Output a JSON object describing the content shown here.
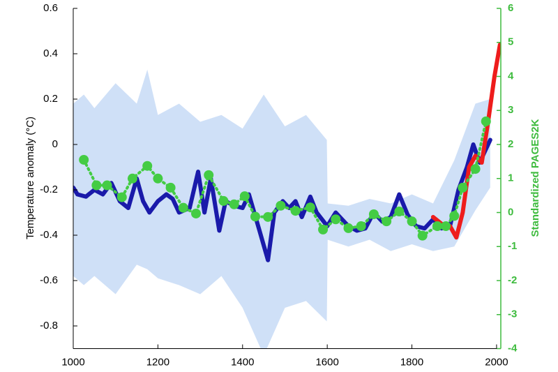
{
  "chart_data": {
    "type": "line",
    "ylabel": "Temperature anomaly (°C)",
    "y2label": "Standardized PAGES2K",
    "xlim": [
      1000,
      2010
    ],
    "xticks": [
      1000,
      1200,
      1400,
      1600,
      1800,
      2000
    ],
    "ylim": [
      -0.9,
      0.6
    ],
    "yticks": [
      -0.8,
      -0.6,
      -0.4,
      -0.2,
      0,
      0.2,
      0.4,
      0.6
    ],
    "y2lim": [
      -4,
      6
    ],
    "y2ticks": [
      -4,
      -3,
      -2,
      -1,
      0,
      1,
      2,
      3,
      4,
      5,
      6
    ],
    "y2color": "#3dbb3d",
    "band": {
      "color": "#cfe0f7",
      "x": [
        1000,
        1025,
        1050,
        1100,
        1150,
        1175,
        1200,
        1250,
        1300,
        1350,
        1400,
        1450,
        1500,
        1550,
        1599,
        1601,
        1650,
        1700,
        1750,
        1800,
        1850,
        1900,
        1950,
        1985
      ],
      "upper": [
        0.18,
        0.22,
        0.16,
        0.27,
        0.18,
        0.33,
        0.13,
        0.18,
        0.1,
        0.13,
        0.07,
        0.22,
        0.08,
        0.13,
        0.02,
        -0.26,
        -0.27,
        -0.24,
        -0.26,
        -0.22,
        -0.26,
        -0.07,
        0.18,
        0.2
      ],
      "lower": [
        -0.58,
        -0.62,
        -0.58,
        -0.66,
        -0.53,
        -0.55,
        -0.59,
        -0.62,
        -0.66,
        -0.58,
        -0.72,
        -0.93,
        -0.72,
        -0.69,
        -0.78,
        -0.42,
        -0.45,
        -0.42,
        -0.47,
        -0.44,
        -0.47,
        -0.45,
        -0.29,
        -0.19
      ]
    },
    "series": [
      {
        "color": "#1a1aaa",
        "style": "solid",
        "x": [
          1000,
          1010,
          1030,
          1050,
          1070,
          1090,
          1110,
          1130,
          1150,
          1165,
          1180,
          1200,
          1220,
          1235,
          1250,
          1275,
          1295,
          1310,
          1325,
          1345,
          1360,
          1380,
          1400,
          1415,
          1440,
          1460,
          1475,
          1495,
          1510,
          1525,
          1540,
          1560,
          1575,
          1600,
          1620,
          1650,
          1670,
          1690,
          1710,
          1730,
          1750,
          1770,
          1790,
          1810,
          1830,
          1850,
          1870,
          1890,
          1910,
          1930,
          1945,
          1960,
          1975,
          1985
        ],
        "values": [
          -0.19,
          -0.22,
          -0.23,
          -0.2,
          -0.22,
          -0.17,
          -0.25,
          -0.28,
          -0.15,
          -0.25,
          -0.3,
          -0.25,
          -0.22,
          -0.24,
          -0.3,
          -0.28,
          -0.12,
          -0.3,
          -0.15,
          -0.38,
          -0.25,
          -0.27,
          -0.28,
          -0.22,
          -0.38,
          -0.51,
          -0.3,
          -0.25,
          -0.28,
          -0.25,
          -0.32,
          -0.23,
          -0.3,
          -0.36,
          -0.3,
          -0.36,
          -0.38,
          -0.37,
          -0.3,
          -0.34,
          -0.32,
          -0.22,
          -0.31,
          -0.36,
          -0.37,
          -0.33,
          -0.37,
          -0.36,
          -0.2,
          -0.1,
          0.0,
          -0.08,
          -0.02,
          0.02
        ]
      },
      {
        "color": "#ee1c1c",
        "style": "solid",
        "x": [
          1850,
          1870,
          1890,
          1905,
          1920,
          1935,
          1950,
          1965,
          1980,
          1995,
          2008
        ],
        "values": [
          -0.32,
          -0.35,
          -0.36,
          -0.41,
          -0.3,
          -0.1,
          -0.05,
          -0.08,
          0.1,
          0.3,
          0.44
        ]
      },
      {
        "color": "#44cc44",
        "style": "dotted",
        "axis": "y2",
        "x": [
          1025,
          1055,
          1080,
          1115,
          1140,
          1175,
          1200,
          1230,
          1260,
          1290,
          1320,
          1355,
          1380,
          1405,
          1430,
          1460,
          1490,
          1525,
          1560,
          1590,
          1620,
          1650,
          1680,
          1710,
          1740,
          1770,
          1800,
          1825,
          1860,
          1880,
          1900,
          1920,
          1950,
          1975
        ],
        "values": [
          1.55,
          0.8,
          0.8,
          0.45,
          1.0,
          1.37,
          1.0,
          0.73,
          0.14,
          -0.03,
          1.1,
          0.34,
          0.24,
          0.48,
          -0.12,
          -0.13,
          0.2,
          0.05,
          0.15,
          -0.5,
          -0.2,
          -0.46,
          -0.4,
          -0.05,
          -0.26,
          0.03,
          -0.26,
          -0.68,
          -0.4,
          -0.4,
          -0.1,
          0.73,
          1.28,
          2.68
        ]
      }
    ]
  }
}
